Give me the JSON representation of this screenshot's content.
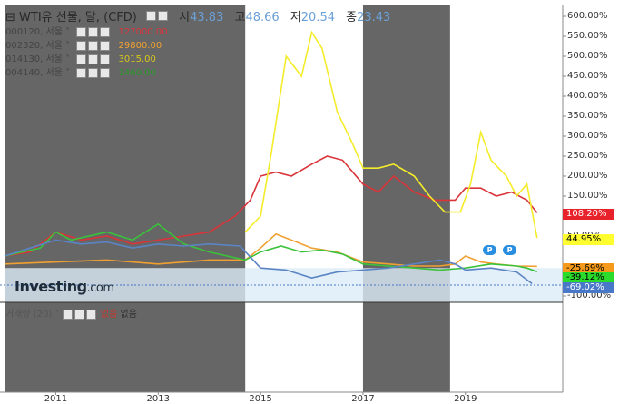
{
  "title": {
    "instrument": "⊟ WTI유 선물, 달, (CFD)",
    "open_label": "시",
    "open_value": "43.83",
    "high_label": "고",
    "high_value": "48.66",
    "low_label": "저",
    "low_value": "20.54",
    "close_label": "종",
    "close_value": "23.43"
  },
  "legend": [
    {
      "name": "000120, 서울 ˅",
      "value": "127000.00",
      "color": "#d9343a"
    },
    {
      "name": "002320, 서울 ˅",
      "value": "29800.00",
      "color": "#f0a030"
    },
    {
      "name": "014130, 서울 ˅",
      "value": "3015.00",
      "color": "#e8d520"
    },
    {
      "name": "004140, 서울 ˅",
      "value": "1460.00",
      "color": "#2a9a2a"
    }
  ],
  "volume": {
    "label": "거래량 (20) ˅",
    "v1": "없음",
    "v2": "없음",
    "v1_color": "#c0392b"
  },
  "logo": {
    "main": "Investing",
    "suffix": ".com"
  },
  "pmarks": [
    "P",
    "P"
  ],
  "colors": {
    "wti": "#5b84c4",
    "s000120": "#d9343a",
    "s002320": "#f0a030",
    "s014130": "#f4ec2a",
    "s004140": "#3ac23a",
    "shade": "#666666"
  },
  "chart_data": {
    "type": "line",
    "y_unit": "% change",
    "ylim": [
      -100,
      620
    ],
    "y_ticks": [
      "600.00%",
      "550.00%",
      "500.00%",
      "450.00%",
      "400.00%",
      "350.00%",
      "300.00%",
      "250.00%",
      "200.00%",
      "150.00%",
      "100.00%",
      "50.00%",
      "-100.00%"
    ],
    "x_ticks": [
      "2011",
      "2013",
      "2015",
      "2017",
      "2019"
    ],
    "last_values": [
      {
        "label": "108.20%",
        "value": 108.2,
        "bg": "#e8222a",
        "fg": "#ffffff"
      },
      {
        "label": "44.95%",
        "value": 44.95,
        "bg": "#ffff30",
        "fg": "#000000"
      },
      {
        "label": "-25.69%",
        "value": -25.69,
        "bg": "#f59a1a",
        "fg": "#000000"
      },
      {
        "label": "-39.12%",
        "value": -39.12,
        "bg": "#2cdc2c",
        "fg": "#000000"
      },
      {
        "label": "-69.02%",
        "value": -69.02,
        "bg": "#4a78c8",
        "fg": "#ffffff"
      }
    ],
    "shaded_periods": [
      [
        "2010.0",
        "2014.7"
      ],
      [
        "2017.0",
        "2018.7"
      ]
    ],
    "series": [
      {
        "name": "000120",
        "x": [
          2010.0,
          2010.5,
          2011.0,
          2011.5,
          2012.0,
          2012.5,
          2013.0,
          2013.5,
          2014.0,
          2014.5,
          2014.8,
          2015.0,
          2015.3,
          2015.6,
          2016.0,
          2016.3,
          2016.6,
          2017.0,
          2017.3,
          2017.6,
          2018.0,
          2018.4,
          2018.8,
          2019.0,
          2019.3,
          2019.6,
          2019.9,
          2020.2,
          2020.4
        ],
        "values": [
          0,
          10,
          60,
          40,
          50,
          30,
          40,
          50,
          60,
          100,
          140,
          200,
          210,
          200,
          230,
          250,
          240,
          180,
          160,
          200,
          160,
          140,
          140,
          170,
          170,
          150,
          160,
          140,
          108.2
        ]
      },
      {
        "name": "002320",
        "x": [
          2010.0,
          2011.0,
          2012.0,
          2013.0,
          2014.0,
          2014.7,
          2015.0,
          2015.3,
          2015.6,
          2016.0,
          2016.5,
          2017.0,
          2017.5,
          2018.0,
          2018.5,
          2018.8,
          2019.0,
          2019.3,
          2019.6,
          2020.0,
          2020.4
        ],
        "values": [
          -20,
          -15,
          -10,
          -20,
          -10,
          -10,
          20,
          55,
          40,
          20,
          10,
          -15,
          -20,
          -25,
          -25,
          -20,
          0,
          -15,
          -20,
          -25,
          -25.69
        ]
      },
      {
        "name": "014130",
        "x": [
          2014.7,
          2015.0,
          2015.2,
          2015.5,
          2015.8,
          2016.0,
          2016.2,
          2016.5,
          2016.8,
          2017.0,
          2017.3,
          2017.6,
          2018.0,
          2018.3,
          2018.6,
          2018.9,
          2019.1,
          2019.3,
          2019.5,
          2019.8,
          2020.0,
          2020.2,
          2020.4
        ],
        "values": [
          60,
          100,
          250,
          500,
          450,
          560,
          520,
          360,
          280,
          220,
          220,
          230,
          200,
          150,
          110,
          110,
          180,
          310,
          240,
          200,
          150,
          180,
          44.95
        ]
      },
      {
        "name": "004140",
        "x": [
          2010.0,
          2010.7,
          2011.0,
          2011.3,
          2012.0,
          2012.5,
          2013.0,
          2013.5,
          2014.0,
          2014.7,
          2015.0,
          2015.4,
          2015.8,
          2016.2,
          2016.6,
          2017.0,
          2017.5,
          2018.0,
          2018.5,
          2019.0,
          2019.5,
          2020.0,
          2020.2,
          2020.4
        ],
        "values": [
          0,
          20,
          60,
          40,
          60,
          40,
          80,
          30,
          10,
          -10,
          10,
          25,
          10,
          15,
          5,
          -20,
          -25,
          -30,
          -35,
          -30,
          -20,
          -25,
          -30,
          -39.12
        ]
      },
      {
        "name": "WTI",
        "x": [
          2010.0,
          2010.5,
          2011.0,
          2011.5,
          2012.0,
          2012.5,
          2013.0,
          2013.5,
          2014.0,
          2014.6,
          2015.0,
          2015.5,
          2016.0,
          2016.5,
          2017.0,
          2017.5,
          2018.0,
          2018.5,
          2018.8,
          2019.0,
          2019.5,
          2020.0,
          2020.3
        ],
        "values": [
          0,
          20,
          40,
          30,
          35,
          20,
          30,
          25,
          30,
          25,
          -30,
          -35,
          -55,
          -40,
          -35,
          -30,
          -20,
          -10,
          -20,
          -35,
          -30,
          -40,
          -69.02
        ]
      }
    ]
  }
}
